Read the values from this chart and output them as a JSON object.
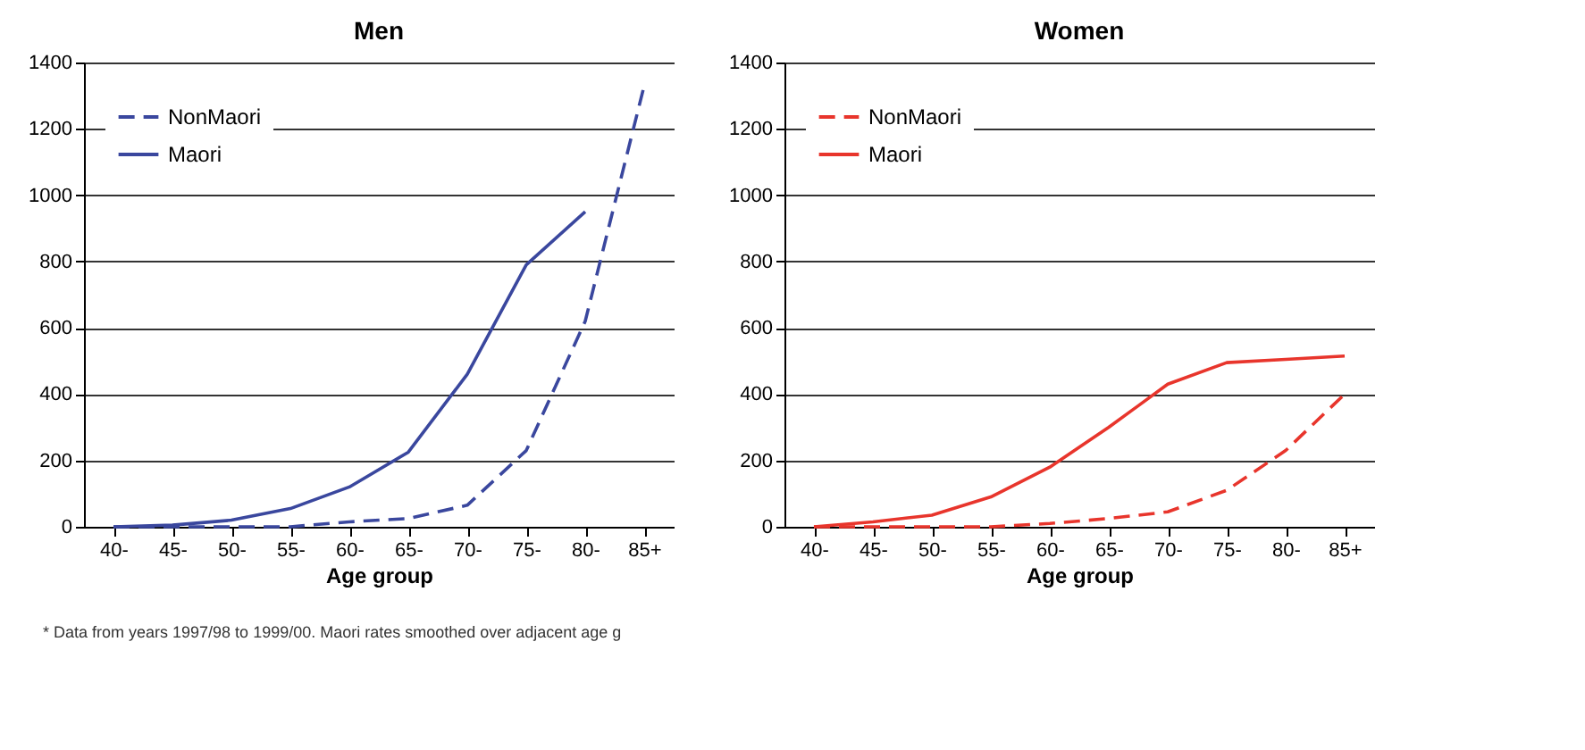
{
  "chart_data": [
    {
      "type": "line",
      "title": "Men",
      "xlabel": "Age group",
      "categories": [
        "40-",
        "45-",
        "50-",
        "55-",
        "60-",
        "65-",
        "70-",
        "75-",
        "80-",
        "85+"
      ],
      "series": [
        {
          "name": "NonMaori",
          "color": "#3a479e",
          "line_style": "dashed",
          "values": [
            0,
            0,
            0,
            0,
            15,
            25,
            65,
            230,
            620,
            1330
          ]
        },
        {
          "name": "Maori",
          "color": "#3a479e",
          "line_style": "solid",
          "values": [
            0,
            5,
            20,
            55,
            120,
            225,
            460,
            790,
            950,
            null
          ]
        }
      ],
      "ylim": [
        0,
        1400
      ],
      "yticks": [
        0,
        200,
        400,
        600,
        800,
        1000,
        1200,
        1400
      ],
      "grid": "y",
      "legend": "top left",
      "annotations": [
        "* Data from years 1997/98 to 1999/00.  Maori rates smoothed over adjacent age g"
      ]
    },
    {
      "type": "line",
      "title": "Women",
      "xlabel": "Age group",
      "categories": [
        "40-",
        "45-",
        "50-",
        "55-",
        "60-",
        "65-",
        "70-",
        "75-",
        "80-",
        "85+"
      ],
      "series": [
        {
          "name": "NonMaori",
          "color": "#e8352c",
          "line_style": "dashed",
          "values": [
            0,
            0,
            0,
            0,
            10,
            25,
            45,
            110,
            230,
            400
          ]
        },
        {
          "name": "Maori",
          "color": "#e8352c",
          "line_style": "solid",
          "values": [
            0,
            15,
            35,
            90,
            180,
            300,
            430,
            495,
            505,
            515
          ]
        }
      ],
      "ylim": [
        0,
        1400
      ],
      "yticks": [
        0,
        200,
        400,
        600,
        800,
        1000,
        1200,
        1400
      ],
      "grid": "y",
      "legend": "top left"
    }
  ]
}
